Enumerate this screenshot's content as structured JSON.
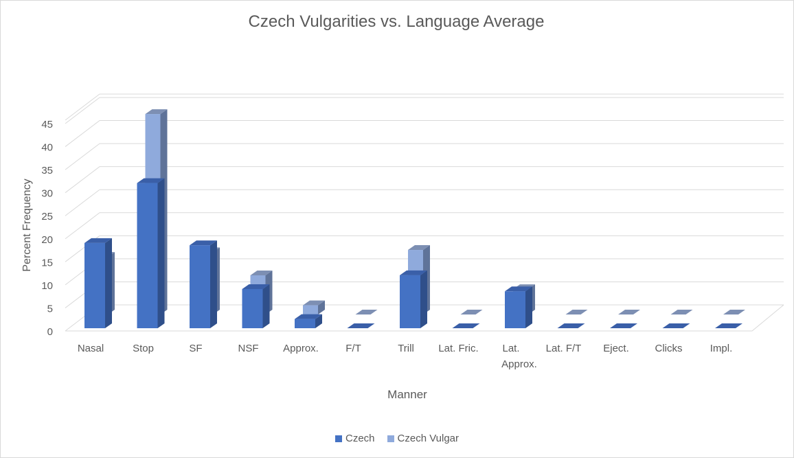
{
  "chart_data": {
    "type": "bar",
    "title": "Czech Vulgarities vs. Language Average",
    "xlabel": "Manner",
    "ylabel": "Percent Frequency",
    "ylim": [
      0,
      45
    ],
    "yticks": [
      0,
      5,
      10,
      15,
      20,
      25,
      30,
      35,
      40,
      45
    ],
    "categories": [
      "Nasal",
      "Stop",
      "SF",
      "NSF",
      "Approx.",
      "F/T",
      "Trill",
      "Lat. Fric.",
      "Lat. Approx.",
      "Lat. F/T",
      "Eject.",
      "Clicks",
      "Impl."
    ],
    "series": [
      {
        "name": "Czech",
        "values": [
          18.5,
          31.5,
          18,
          8.5,
          2,
          0,
          11.5,
          0,
          8,
          0,
          0,
          0,
          0
        ]
      },
      {
        "name": "Czech Vulgar",
        "values": [
          12.5,
          43.5,
          13.5,
          8.5,
          2,
          0,
          14,
          0,
          5.5,
          0,
          0,
          0,
          0
        ]
      }
    ],
    "grid": true,
    "legend": "bottom",
    "colors": {
      "czech_front": "#4472c4",
      "czech_side": "#2f4f8a",
      "czech_top": "#3a5fa8",
      "vulgar_front": "#8faadc",
      "vulgar_side": "#5f7399",
      "vulgar_top": "#7d8fb3",
      "grid": "#d9d9d9",
      "text": "#595959"
    }
  }
}
